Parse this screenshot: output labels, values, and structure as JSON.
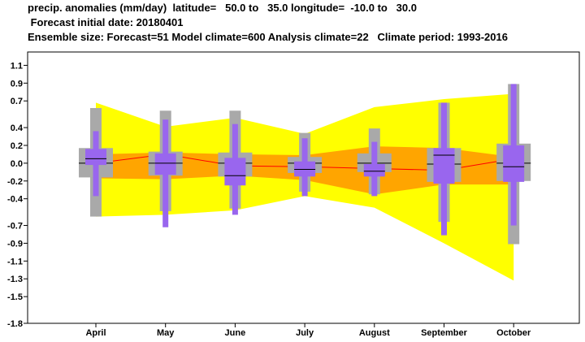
{
  "header": {
    "line1": "precip. anomalies (mm/day)  latitude=   50.0 to   35.0 longitude=  -10.0 to   30.0",
    "line2": " Forecast initial date: 20180401",
    "line3": "Ensemble size: Forecast=51 Model climate=600 Analysis climate=22   Climate period: 1993-2016"
  },
  "chart_data": {
    "type": "box",
    "title": "precip. anomalies (mm/day)  latitude=   50.0 to   35.0 longitude=  -10.0 to   30.0",
    "xlabel": "",
    "ylabel": "",
    "categories": [
      "April",
      "May",
      "June",
      "July",
      "August",
      "September",
      "October"
    ],
    "y_ticks": [
      "1.1",
      "0.9",
      "0.7",
      "0.4",
      "0.2",
      "0.0",
      "-0.2",
      "-0.4",
      "-0.7",
      "-0.9",
      "-1.1",
      "-1.3",
      "-1.5",
      "-1.8"
    ],
    "ylim": [
      -1.8,
      1.25
    ],
    "grid": false,
    "colors": {
      "climate_outer": "#ffff00",
      "climate_inner": "#ffa500",
      "climate_median": "#ff0000",
      "model_climate_box": "#a9a9a9",
      "forecast_box": "#9966ee",
      "median_line": "#000000"
    },
    "analysis_climate_band": {
      "upper_extreme": [
        0.68,
        0.41,
        0.51,
        0.33,
        0.63,
        0.72,
        0.78
      ],
      "upper_quartile": [
        0.1,
        0.12,
        0.1,
        0.09,
        0.19,
        0.17,
        0.07
      ],
      "median": [
        0.0,
        0.1,
        -0.03,
        -0.04,
        -0.06,
        -0.08,
        0.05
      ],
      "lower_quartile": [
        -0.17,
        -0.18,
        -0.14,
        -0.19,
        -0.35,
        -0.24,
        -0.24
      ],
      "lower_extreme": [
        -0.6,
        -0.58,
        -0.53,
        -0.37,
        -0.5,
        -0.9,
        -1.32
      ]
    },
    "model_climate": [
      {
        "category": "April",
        "min": -0.6,
        "q1": -0.16,
        "median": 0.0,
        "q3": 0.17,
        "max": 0.62
      },
      {
        "category": "May",
        "min": -0.54,
        "q1": -0.14,
        "median": 0.0,
        "q3": 0.13,
        "max": 0.59
      },
      {
        "category": "June",
        "min": -0.51,
        "q1": -0.15,
        "median": 0.0,
        "q3": 0.12,
        "max": 0.59
      },
      {
        "category": "July",
        "min": -0.32,
        "q1": -0.11,
        "median": 0.0,
        "q3": 0.07,
        "max": 0.34
      },
      {
        "category": "August",
        "min": -0.35,
        "q1": -0.1,
        "median": 0.0,
        "q3": 0.11,
        "max": 0.39
      },
      {
        "category": "September",
        "min": -0.66,
        "q1": -0.21,
        "median": -0.01,
        "q3": 0.17,
        "max": 0.68
      },
      {
        "category": "October",
        "min": -0.91,
        "q1": -0.2,
        "median": 0.0,
        "q3": 0.22,
        "max": 0.89
      }
    ],
    "forecast": [
      {
        "category": "April",
        "min": -0.37,
        "q1": -0.02,
        "median": 0.05,
        "q3": 0.16,
        "max": 0.36
      },
      {
        "category": "May",
        "min": -0.72,
        "q1": -0.13,
        "median": 0.0,
        "q3": 0.11,
        "max": 0.49
      },
      {
        "category": "June",
        "min": -0.58,
        "q1": -0.25,
        "median": -0.14,
        "q3": 0.06,
        "max": 0.44
      },
      {
        "category": "July",
        "min": -0.37,
        "q1": -0.15,
        "median": -0.07,
        "q3": 0.02,
        "max": 0.28
      },
      {
        "category": "August",
        "min": -0.37,
        "q1": -0.15,
        "median": -0.09,
        "q3": -0.01,
        "max": 0.24
      },
      {
        "category": "September",
        "min": -0.81,
        "q1": -0.23,
        "median": 0.09,
        "q3": 0.17,
        "max": 0.68
      },
      {
        "category": "October",
        "min": -0.7,
        "q1": -0.21,
        "median": -0.04,
        "q3": 0.2,
        "max": 0.89
      }
    ]
  }
}
